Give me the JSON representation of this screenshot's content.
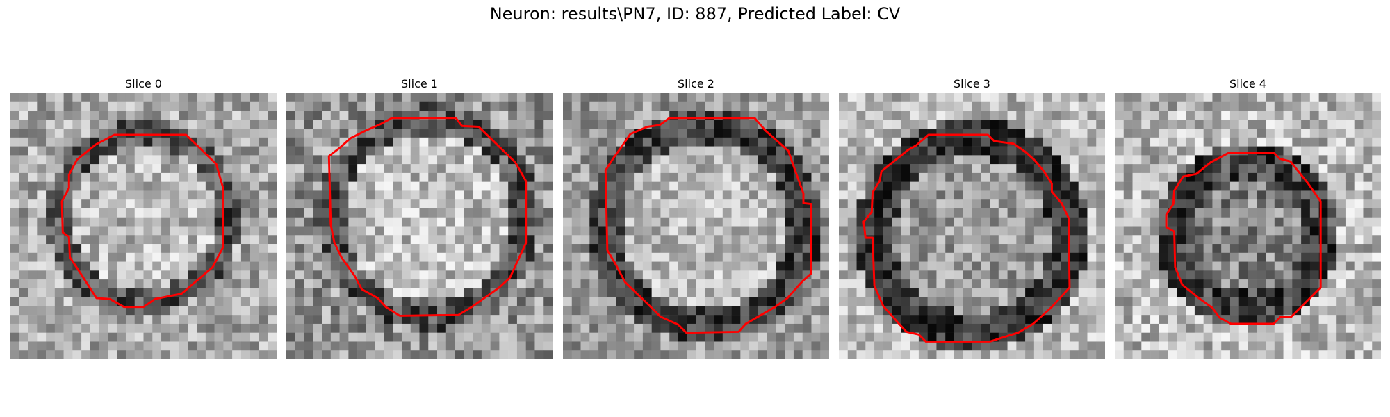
{
  "figure": {
    "title": "Neuron: results\\PN7, ID: 887, Predicted Label: CV"
  },
  "panels": [
    {
      "title": "Slice 0"
    },
    {
      "title": "Slice 1"
    },
    {
      "title": "Slice 2"
    },
    {
      "title": "Slice 3"
    },
    {
      "title": "Slice 4"
    }
  ],
  "colors": {
    "contour": "#ff0000"
  }
}
